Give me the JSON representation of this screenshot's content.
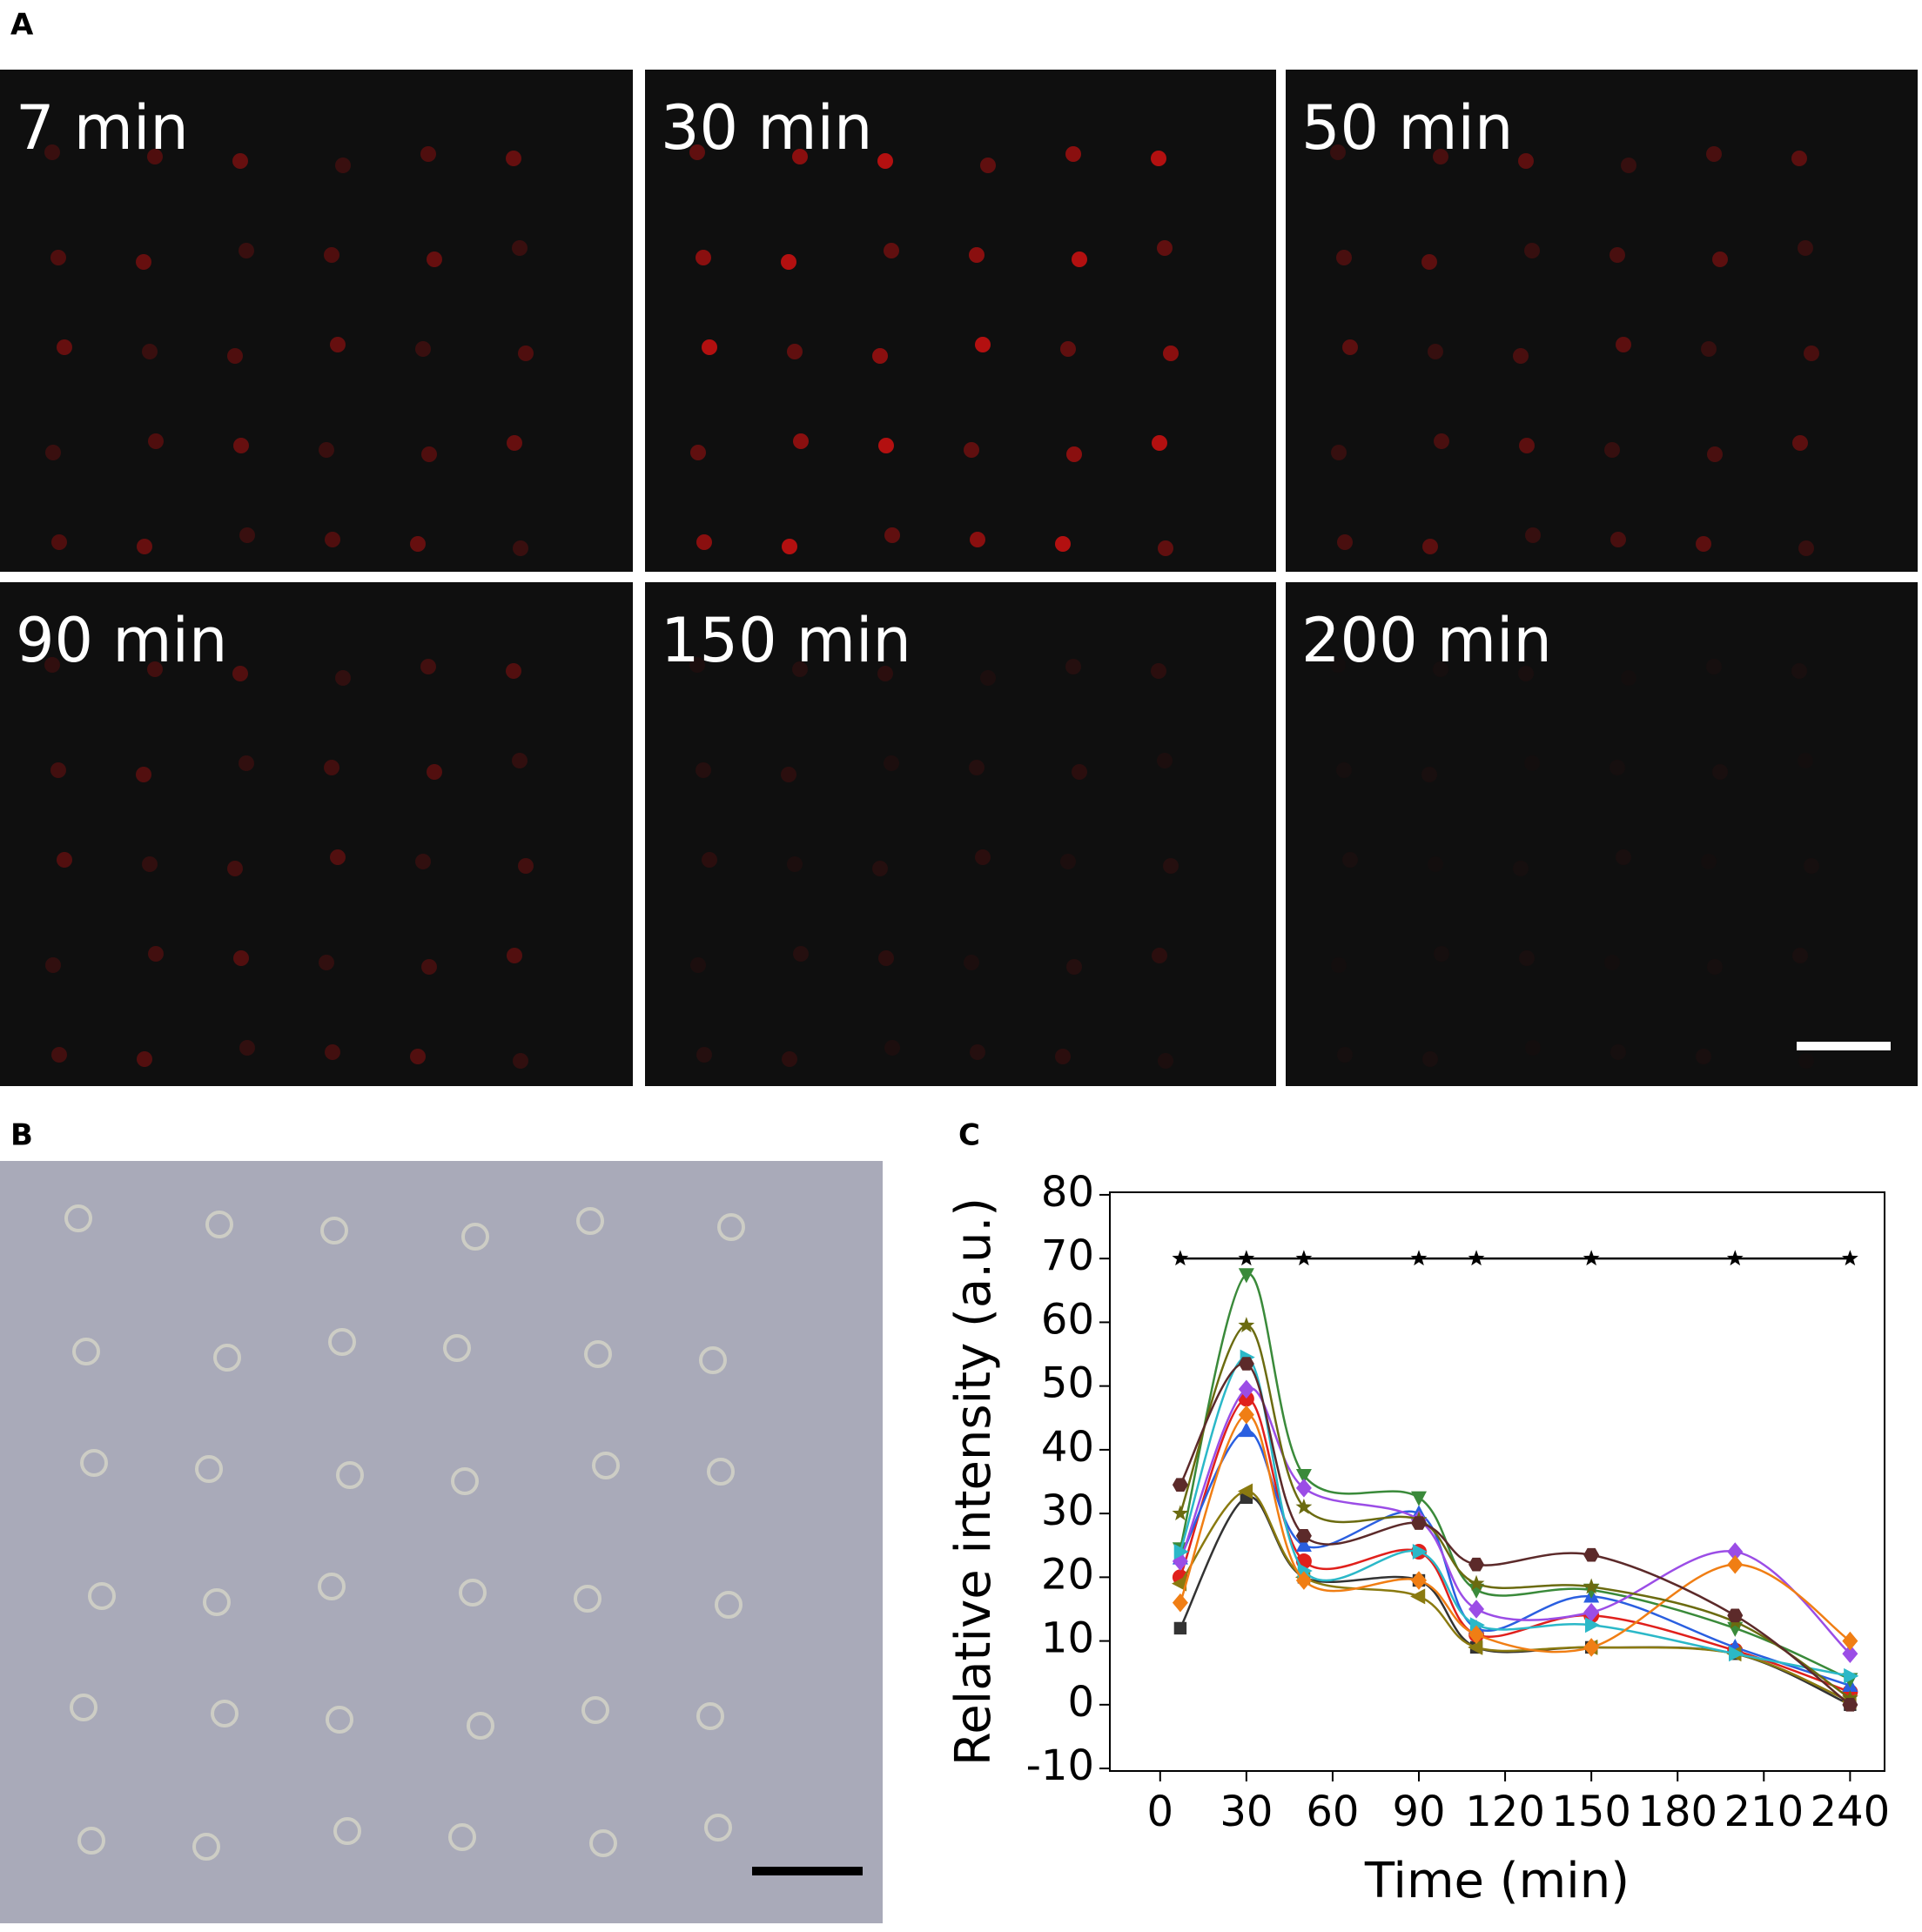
{
  "panel_labels": {
    "a": "A",
    "b": "B",
    "c": "C"
  },
  "panel_a": {
    "images": [
      {
        "label": "7 min"
      },
      {
        "label": "30 min"
      },
      {
        "label": "50 min"
      },
      {
        "label": "90 min"
      },
      {
        "label": "150 min"
      },
      {
        "label": "200 min"
      }
    ]
  },
  "chart_data": {
    "type": "line",
    "xlabel": "Time (min)",
    "ylabel": "Relative intensity (a.u.)",
    "x": [
      7,
      30,
      50,
      90,
      110,
      150,
      200,
      240
    ],
    "xlim": [
      -17.5,
      252
    ],
    "xticks": [
      0,
      30,
      60,
      90,
      120,
      150,
      180,
      210,
      240
    ],
    "ylim": [
      -10.4,
      80.4
    ],
    "yticks": [
      -10,
      0,
      10,
      20,
      30,
      40,
      50,
      60,
      70,
      80
    ],
    "series": [
      {
        "color": "#333333",
        "marker": "square",
        "values": [
          12,
          32.5,
          20,
          19.5,
          9,
          9,
          8,
          0
        ]
      },
      {
        "color": "#e0201c",
        "marker": "circle",
        "values": [
          20,
          48,
          22.5,
          24,
          11,
          14,
          8.5,
          2
        ]
      },
      {
        "color": "#2a5fe0",
        "marker": "triangle-up",
        "values": [
          23,
          43,
          25,
          30,
          12,
          17,
          9,
          3
        ]
      },
      {
        "color": "#3a8a3a",
        "marker": "triangle-down",
        "values": [
          24.5,
          67.5,
          36,
          32.5,
          18,
          18,
          12,
          4
        ]
      },
      {
        "color": "#9b4de6",
        "marker": "diamond",
        "values": [
          22.5,
          49.5,
          34,
          29,
          15,
          14.5,
          24,
          8
        ]
      },
      {
        "color": "#8a7a10",
        "marker": "triangle-left",
        "values": [
          19,
          33.5,
          20,
          17,
          9,
          9,
          8,
          0.5
        ]
      },
      {
        "color": "#2bb8c8",
        "marker": "triangle-right",
        "values": [
          24,
          54.5,
          21,
          24,
          12.5,
          12.5,
          8,
          4.5
        ]
      },
      {
        "color": "#f07e14",
        "marker": "diamond",
        "values": [
          16,
          45.5,
          19.5,
          19.5,
          11,
          9,
          22,
          10
        ]
      },
      {
        "color": "#6b6b10",
        "marker": "star",
        "values": [
          30,
          59.5,
          31,
          29,
          19,
          18.5,
          13,
          1
        ]
      },
      {
        "color": "#5c2a2a",
        "marker": "hexagon",
        "values": [
          34.5,
          53.5,
          26.5,
          28.5,
          22,
          23.5,
          14,
          0
        ]
      },
      {
        "color": "#000000",
        "marker": "star",
        "values": [
          70,
          70,
          70,
          70,
          70,
          70,
          70,
          70
        ]
      }
    ]
  }
}
